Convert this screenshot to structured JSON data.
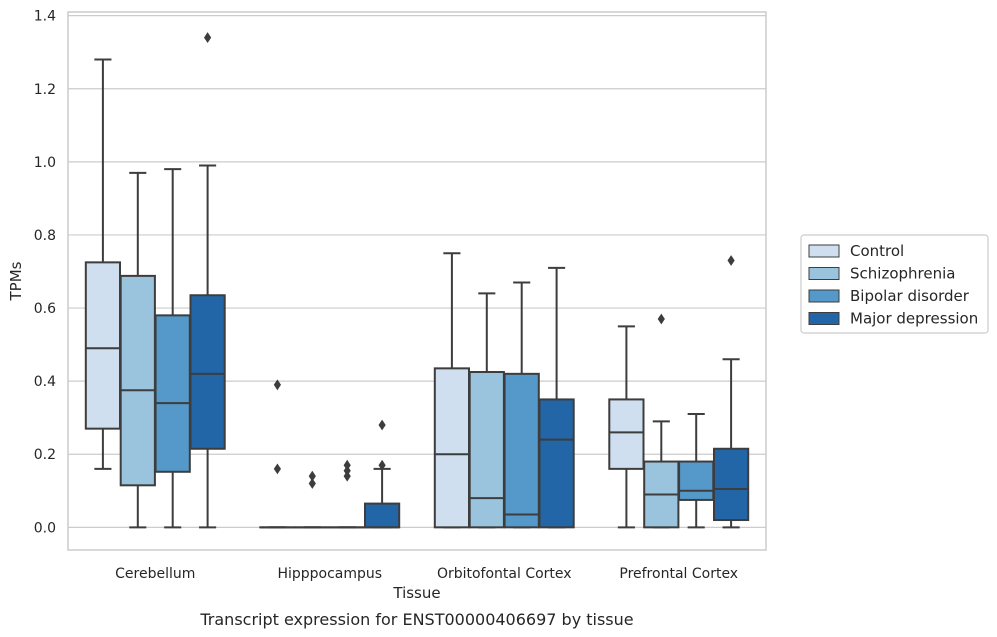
{
  "chart_data": {
    "type": "boxplot",
    "title": "",
    "caption": "Transcript expression for ENST00000406697 by tissue",
    "xlabel": "Tissue",
    "ylabel": "TPMs",
    "ylim": [
      -0.062,
      1.41
    ],
    "yticks": [
      0.0,
      0.2,
      0.4,
      0.6,
      0.8,
      1.0,
      1.2,
      1.4
    ],
    "ytick_labels": [
      "0.0",
      "0.2",
      "0.4",
      "0.6",
      "0.8",
      "1.0",
      "1.2",
      "1.4"
    ],
    "grid": true,
    "legend_position": "right",
    "categories": [
      "Cerebellum",
      "Hipppocampus",
      "Orbitofontal Cortex",
      "Prefrontal Cortex"
    ],
    "series": [
      {
        "name": "Control",
        "color": "#cfdff0",
        "boxes": [
          {
            "whislo": 0.16,
            "q1": 0.27,
            "med": 0.49,
            "q3": 0.725,
            "whishi": 1.28,
            "fliers": []
          },
          {
            "whislo": 0.0,
            "q1": 0.0,
            "med": 0.0,
            "q3": 0.0,
            "whishi": 0.0,
            "fliers": [
              0.39,
              0.16
            ]
          },
          {
            "whislo": 0.0,
            "q1": 0.0,
            "med": 0.2,
            "q3": 0.435,
            "whishi": 0.75,
            "fliers": []
          },
          {
            "whislo": 0.0,
            "q1": 0.16,
            "med": 0.26,
            "q3": 0.35,
            "whishi": 0.55,
            "fliers": []
          }
        ]
      },
      {
        "name": "Schizophrenia",
        "color": "#9ac3dd",
        "boxes": [
          {
            "whislo": 0.0,
            "q1": 0.115,
            "med": 0.375,
            "q3": 0.688,
            "whishi": 0.97,
            "fliers": []
          },
          {
            "whislo": 0.0,
            "q1": 0.0,
            "med": 0.0,
            "q3": 0.0,
            "whishi": 0.0,
            "fliers": [
              0.14,
              0.12
            ]
          },
          {
            "whislo": 0.0,
            "q1": 0.0,
            "med": 0.08,
            "q3": 0.425,
            "whishi": 0.64,
            "fliers": []
          },
          {
            "whislo": 0.0,
            "q1": 0.0,
            "med": 0.09,
            "q3": 0.18,
            "whishi": 0.29,
            "fliers": [
              0.57
            ]
          }
        ]
      },
      {
        "name": "Bipolar disorder",
        "color": "#5499c9",
        "boxes": [
          {
            "whislo": 0.0,
            "q1": 0.152,
            "med": 0.34,
            "q3": 0.58,
            "whishi": 0.98,
            "fliers": []
          },
          {
            "whislo": 0.0,
            "q1": 0.0,
            "med": 0.0,
            "q3": 0.0,
            "whishi": 0.0,
            "fliers": [
              0.17,
              0.155,
              0.14
            ]
          },
          {
            "whislo": 0.0,
            "q1": 0.0,
            "med": 0.035,
            "q3": 0.42,
            "whishi": 0.67,
            "fliers": []
          },
          {
            "whislo": 0.0,
            "q1": 0.075,
            "med": 0.1,
            "q3": 0.18,
            "whishi": 0.31,
            "fliers": []
          }
        ]
      },
      {
        "name": "Major depression",
        "color": "#2266a8",
        "boxes": [
          {
            "whislo": 0.0,
            "q1": 0.215,
            "med": 0.42,
            "q3": 0.635,
            "whishi": 0.99,
            "fliers": [
              1.34
            ]
          },
          {
            "whislo": 0.0,
            "q1": 0.0,
            "med": 0.0,
            "q3": 0.065,
            "whishi": 0.16,
            "fliers": [
              0.28,
              0.17
            ]
          },
          {
            "whislo": 0.0,
            "q1": 0.0,
            "med": 0.24,
            "q3": 0.35,
            "whishi": 0.71,
            "fliers": []
          },
          {
            "whislo": 0.0,
            "q1": 0.02,
            "med": 0.105,
            "q3": 0.215,
            "whishi": 0.46,
            "fliers": [
              0.73
            ]
          }
        ]
      }
    ]
  }
}
